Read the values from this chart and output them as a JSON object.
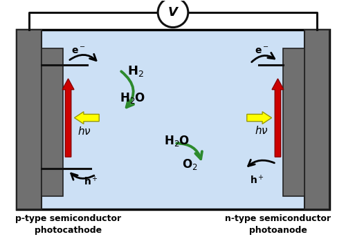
{
  "fig_width": 5.0,
  "fig_height": 3.46,
  "dpi": 100,
  "bg_color": "#ffffff",
  "cell_fill": "#cce0f5",
  "cell_border": "#000000",
  "electrode_color": "#707070",
  "red_arrow_color": "#cc0000",
  "yellow_arrow_color": "#ffff00",
  "green_arrow_color": "#2d8a2d",
  "wire_color": "#111111",
  "voltmeter_color": "#111111",
  "label_left": "p-type semiconductor\nphotocathode",
  "label_right": "n-type semiconductor\nphotoanode",
  "voltmeter_label": "V"
}
